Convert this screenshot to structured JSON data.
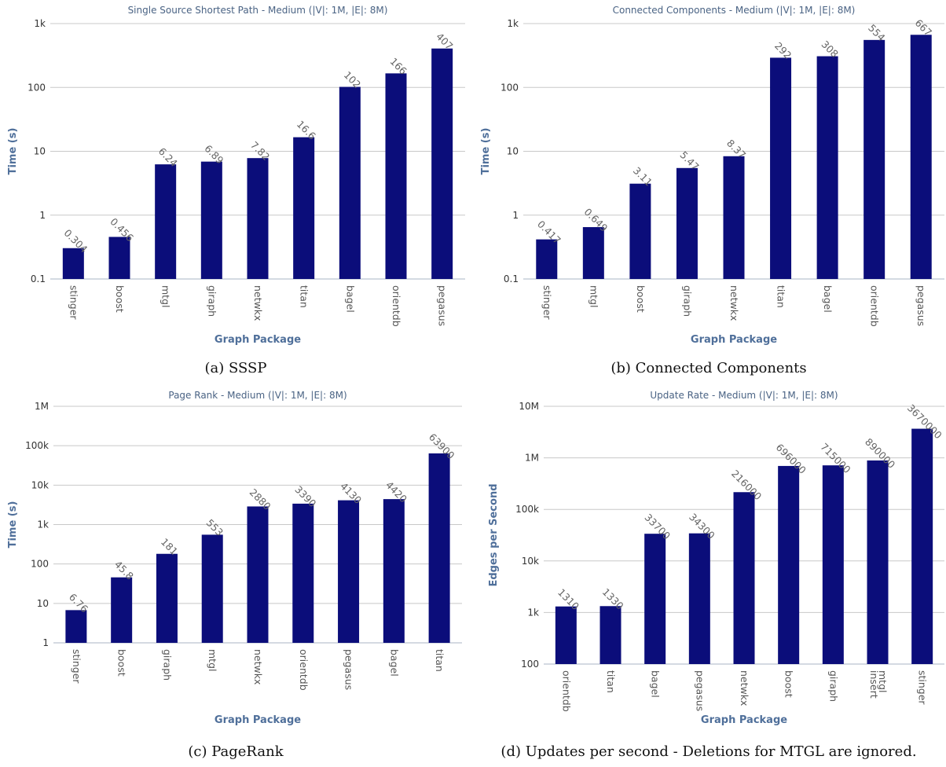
{
  "chart_data": [
    {
      "type": "bar",
      "title": "Single Source Shortest Path - Medium (|V|: 1M, |E|: 8M)",
      "xlabel": "Graph Package",
      "ylabel": "Time (s)",
      "yscale": "log",
      "ylim": [
        0.1,
        1000
      ],
      "yticks": [
        0.1,
        1,
        10,
        100,
        1000
      ],
      "ytick_labels": [
        "0.1",
        "1",
        "10",
        "100",
        "1k"
      ],
      "categories": [
        "stinger",
        "boost",
        "mtgl",
        "giraph",
        "netwkx",
        "titan",
        "bagel",
        "orientdb",
        "pegasus"
      ],
      "values": [
        0.304,
        0.456,
        6.24,
        6.89,
        7.82,
        16.6,
        102,
        166,
        407
      ],
      "value_labels": [
        "0.304",
        "0.456",
        "6.24",
        "6.89",
        "7.82",
        "16.6",
        "102",
        "166",
        "407"
      ],
      "caption": "(a) SSSP"
    },
    {
      "type": "bar",
      "title": "Connected Components - Medium (|V|: 1M, |E|: 8M)",
      "xlabel": "Graph Package",
      "ylabel": "Time (s)",
      "yscale": "log",
      "ylim": [
        0.1,
        1000
      ],
      "yticks": [
        0.1,
        1,
        10,
        100,
        1000
      ],
      "ytick_labels": [
        "0.1",
        "1",
        "10",
        "100",
        "1k"
      ],
      "categories": [
        "stinger",
        "mtgl",
        "boost",
        "giraph",
        "netwkx",
        "titan",
        "bagel",
        "orientdb",
        "pegasus"
      ],
      "values": [
        0.417,
        0.649,
        3.11,
        5.47,
        8.37,
        292,
        308,
        554,
        667
      ],
      "value_labels": [
        "0.417",
        "0.649",
        "3.11",
        "5.47",
        "8.37",
        "292",
        "308",
        "554",
        "667"
      ],
      "caption": "(b) Connected Components"
    },
    {
      "type": "bar",
      "title": "Page Rank - Medium (|V|: 1M, |E|: 8M)",
      "xlabel": "Graph Package",
      "ylabel": "Time (s)",
      "yscale": "log",
      "ylim": [
        1,
        1000000
      ],
      "yticks": [
        1,
        10,
        100,
        1000,
        10000,
        100000,
        1000000
      ],
      "ytick_labels": [
        "1",
        "10",
        "100",
        "1k",
        "10k",
        "100k",
        "1M"
      ],
      "categories": [
        "stinger",
        "boost",
        "giraph",
        "mtgl",
        "netwkx",
        "orientdb",
        "pegasus",
        "bagel",
        "titan"
      ],
      "values": [
        6.76,
        45.8,
        181,
        553,
        2880,
        3390,
        4130,
        4420,
        63900
      ],
      "value_labels": [
        "6.76",
        "45.8",
        "181",
        "553",
        "2880",
        "3390",
        "4130",
        "4420",
        "63900"
      ],
      "caption": "(c) PageRank"
    },
    {
      "type": "bar",
      "title": "Update Rate - Medium (|V|: 1M, |E|: 8M)",
      "xlabel": "Graph Package",
      "ylabel": "Edges per Second",
      "yscale": "log",
      "ylim": [
        100,
        10000000
      ],
      "yticks": [
        100,
        1000,
        10000,
        100000,
        1000000,
        10000000
      ],
      "ytick_labels": [
        "100",
        "1k",
        "10k",
        "100k",
        "1M",
        "10M"
      ],
      "categories": [
        "orientdb",
        "titan",
        "bagel",
        "pegasus",
        "netwkx",
        "boost",
        "giraph",
        "mtgl insert",
        "stinger"
      ],
      "values": [
        1310,
        1330,
        33700,
        34300,
        216000,
        696000,
        715000,
        890000,
        3670000
      ],
      "value_labels": [
        "1310",
        "1330",
        "33700",
        "34300",
        "216000",
        "696000",
        "715000",
        "890000",
        "3670000"
      ],
      "caption": "(d) Updates per second - Deletions for MTGL are ignored."
    }
  ],
  "colors": {
    "bar": "#0b0d7a",
    "grid": "#c8c8c8",
    "title": "#4a6384",
    "axis_label": "#4f6f9a"
  }
}
